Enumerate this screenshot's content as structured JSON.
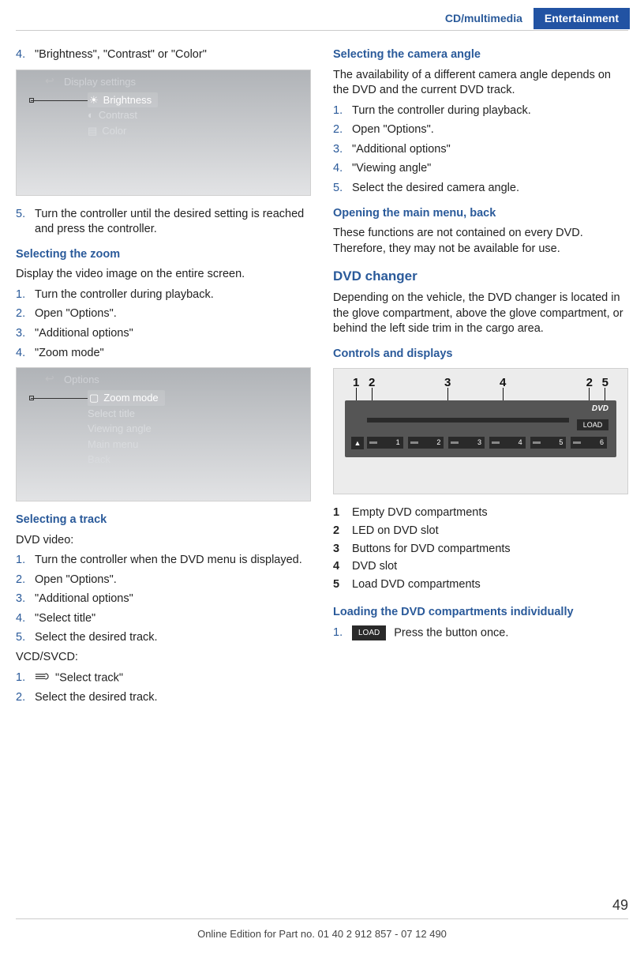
{
  "header": {
    "breadcrumb": "CD/multimedia",
    "section": "Entertainment"
  },
  "left": {
    "s1": {
      "n4": "4.",
      "t4": "\"Brightness\", \"Contrast\" or \"Color\"",
      "scr_title": "Display settings",
      "scr_items": [
        "Brightness",
        "Contrast",
        "Color"
      ],
      "n5": "5.",
      "t5": "Turn the controller until the desired setting is reached and press the controller."
    },
    "zoom": {
      "h": "Selecting the zoom",
      "p": "Display the video image on the entire screen.",
      "steps": [
        {
          "n": "1.",
          "t": "Turn the controller during playback."
        },
        {
          "n": "2.",
          "t": "Open \"Options\"."
        },
        {
          "n": "3.",
          "t": "\"Additional options\""
        },
        {
          "n": "4.",
          "t": "\"Zoom mode\""
        }
      ],
      "scr_title": "Options",
      "scr_items": [
        "Zoom mode",
        "Select title",
        "Viewing angle",
        "Main menu",
        "Back"
      ]
    },
    "track": {
      "h": "Selecting a track",
      "p1": "DVD video:",
      "steps1": [
        {
          "n": "1.",
          "t": "Turn the controller when the DVD menu is displayed."
        },
        {
          "n": "2.",
          "t": "Open \"Options\"."
        },
        {
          "n": "3.",
          "t": "\"Additional options\""
        },
        {
          "n": "4.",
          "t": "\"Select title\""
        },
        {
          "n": "5.",
          "t": "Select the desired track."
        }
      ],
      "p2": "VCD/SVCD:",
      "steps2": [
        {
          "n": "1.",
          "t": "\"Select track\""
        },
        {
          "n": "2.",
          "t": "Select the desired track."
        }
      ]
    }
  },
  "right": {
    "cam": {
      "h": "Selecting the camera angle",
      "p": "The availability of a different camera angle de­pends on the DVD and the current DVD track.",
      "steps": [
        {
          "n": "1.",
          "t": "Turn the controller during playback."
        },
        {
          "n": "2.",
          "t": "Open \"Options\"."
        },
        {
          "n": "3.",
          "t": "\"Additional options\""
        },
        {
          "n": "4.",
          "t": "\"Viewing angle\""
        },
        {
          "n": "5.",
          "t": "Select the desired camera angle."
        }
      ]
    },
    "menu": {
      "h": "Opening the main menu, back",
      "p": "These functions are not contained on every DVD. Therefore, they may not be available for use."
    },
    "changer": {
      "h": "DVD changer",
      "p": "Depending on the vehicle, the DVD changer is located in the glove compartment, above the glove compartment, or behind the left side trim in the cargo area."
    },
    "controls": {
      "h": "Controls and displays",
      "nums": [
        "1",
        "2",
        "3",
        "4",
        "2",
        "5"
      ],
      "btns": [
        "1",
        "2",
        "3",
        "4",
        "5",
        "6"
      ],
      "dvd": "DVD",
      "load": "LOAD",
      "legend": [
        {
          "n": "1",
          "t": "Empty DVD compartments"
        },
        {
          "n": "2",
          "t": "LED on DVD slot"
        },
        {
          "n": "3",
          "t": "Buttons for DVD compartments"
        },
        {
          "n": "4",
          "t": "DVD slot"
        },
        {
          "n": "5",
          "t": "Load DVD compartments"
        }
      ]
    },
    "load": {
      "h": "Loading the DVD compartments individually",
      "n1": "1.",
      "btn": "LOAD",
      "t1": "Press the button once."
    }
  },
  "footer": {
    "text": "Online Edition for Part no. 01 40 2 912 857 - 07 12 490",
    "page": "49"
  }
}
